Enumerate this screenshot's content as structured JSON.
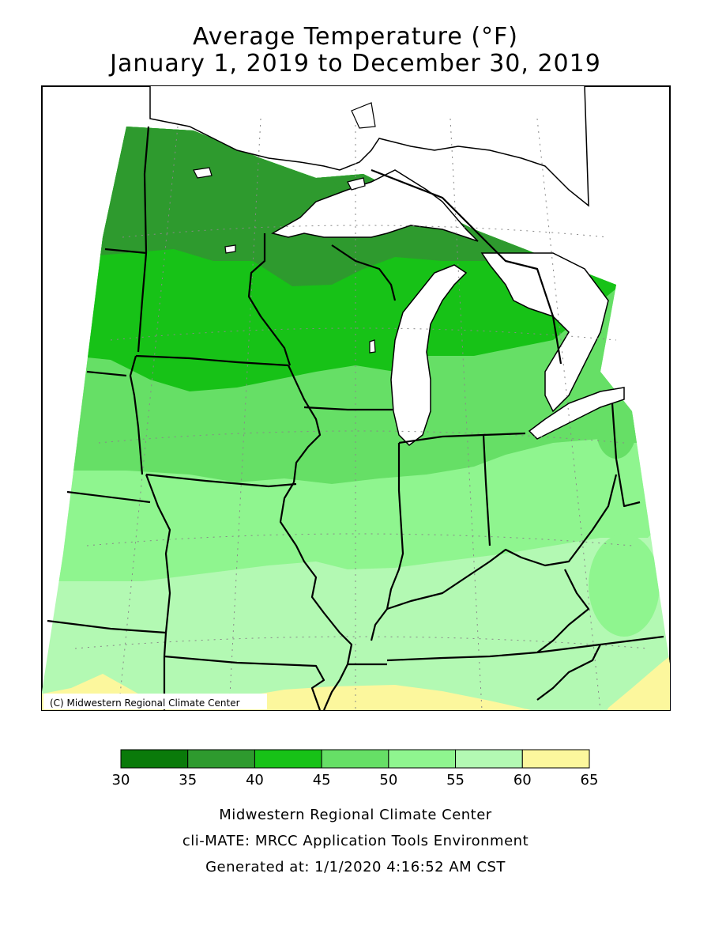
{
  "title": {
    "line1": "Average Temperature (°F)",
    "line2": "January 1, 2019 to December 30, 2019"
  },
  "map": {
    "credit": "(C) Midwestern Regional Climate Center"
  },
  "legend": {
    "ticks": [
      "30",
      "35",
      "40",
      "45",
      "50",
      "55",
      "60",
      "65"
    ],
    "bins": [
      {
        "from": 30,
        "to": 35,
        "color": "#0a7a0a"
      },
      {
        "from": 35,
        "to": 40,
        "color": "#2e9a2e"
      },
      {
        "from": 40,
        "to": 45,
        "color": "#17c217"
      },
      {
        "from": 45,
        "to": 50,
        "color": "#66df66"
      },
      {
        "from": 50,
        "to": 55,
        "color": "#8ff58f"
      },
      {
        "from": 55,
        "to": 60,
        "color": "#b3f9b3"
      },
      {
        "from": 60,
        "to": 65,
        "color": "#fcf79d"
      }
    ]
  },
  "footer": {
    "line1": "Midwestern Regional Climate Center",
    "line2": "cli-MATE: MRCC Application Tools Environment",
    "line3": "Generated at: 1/1/2020 4:16:52 AM CST"
  }
}
